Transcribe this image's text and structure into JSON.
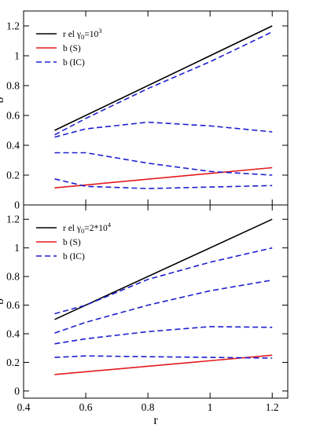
{
  "colors": {
    "black": "#000000",
    "red": "#e41a1c",
    "blue": "#1f1fd0"
  },
  "chart_data": [
    {
      "type": "line",
      "panel": "top",
      "xlim": [
        0.4,
        1.25
      ],
      "ylim": [
        0,
        1.3
      ],
      "xticks": [
        0.4,
        0.6,
        0.8,
        1,
        1.2
      ],
      "yticks": [
        0,
        0.2,
        0.4,
        0.6,
        0.8,
        1,
        1.2
      ],
      "ytick_labels": [
        "0",
        "0.2",
        "0.4",
        "0.6",
        "0.8",
        "1",
        "1.2"
      ],
      "ylabel": "b",
      "legend_position": "top-left",
      "legend": [
        {
          "label": "r el γ",
          "sub": "0",
          "tail": "=10",
          "sup": "3",
          "color": "black",
          "dash": "solid"
        },
        {
          "label": "b  (S)",
          "sub": "",
          "tail": "",
          "sup": "",
          "color": "red",
          "dash": "solid"
        },
        {
          "label": "b  (IC)",
          "sub": "",
          "tail": "",
          "sup": "",
          "color": "blue",
          "dash": "dashed"
        }
      ],
      "series": [
        {
          "name": "r el",
          "color": "black",
          "dash": "solid",
          "x": [
            0.5,
            1.2
          ],
          "y": [
            0.5,
            1.2
          ]
        },
        {
          "name": "b (S)",
          "color": "red",
          "dash": "solid",
          "x": [
            0.5,
            1.2
          ],
          "y": [
            0.115,
            0.25
          ]
        },
        {
          "color": "blue",
          "dash": "dashed",
          "x": [
            0.5,
            0.6,
            0.8,
            1.0,
            1.2
          ],
          "y": [
            0.47,
            0.58,
            0.78,
            0.96,
            1.16
          ]
        },
        {
          "color": "blue",
          "dash": "dashed",
          "x": [
            0.5,
            0.6,
            0.8,
            1.0,
            1.2
          ],
          "y": [
            0.455,
            0.51,
            0.555,
            0.53,
            0.49
          ]
        },
        {
          "color": "blue",
          "dash": "dashed",
          "x": [
            0.5,
            0.6,
            0.8,
            1.0,
            1.2
          ],
          "y": [
            0.35,
            0.35,
            0.28,
            0.225,
            0.2
          ]
        },
        {
          "color": "blue",
          "dash": "dashed",
          "x": [
            0.5,
            0.6,
            0.8,
            1.0,
            1.2
          ],
          "y": [
            0.175,
            0.125,
            0.11,
            0.12,
            0.13
          ]
        }
      ]
    },
    {
      "type": "line",
      "panel": "bottom",
      "xlim": [
        0.4,
        1.25
      ],
      "ylim": [
        -0.05,
        1.3
      ],
      "xticks": [
        0.4,
        0.6,
        0.8,
        1,
        1.2
      ],
      "xtick_labels": [
        "0.4",
        "0.6",
        "0.8",
        "1",
        "1.2"
      ],
      "yticks": [
        0,
        0.2,
        0.4,
        0.6,
        0.8,
        1,
        1.2
      ],
      "ytick_labels": [
        "0",
        "0.2",
        "0.4",
        "0.6",
        "0.8",
        "1",
        "1.2"
      ],
      "xlabel": "r",
      "ylabel": "b",
      "legend_position": "top-left",
      "legend": [
        {
          "label": "r el γ",
          "sub": "0",
          "tail": "=2*10",
          "sup": "4",
          "color": "black",
          "dash": "solid"
        },
        {
          "label": "b (S)",
          "sub": "",
          "tail": "",
          "sup": "",
          "color": "red",
          "dash": "solid"
        },
        {
          "label": "b (IC)",
          "sub": "",
          "tail": "",
          "sup": "",
          "color": "blue",
          "dash": "dashed"
        }
      ],
      "series": [
        {
          "name": "r el",
          "color": "black",
          "dash": "solid",
          "x": [
            0.5,
            1.2
          ],
          "y": [
            0.5,
            1.2
          ]
        },
        {
          "name": "b (S)",
          "color": "red",
          "dash": "solid",
          "x": [
            0.5,
            1.2
          ],
          "y": [
            0.115,
            0.25
          ]
        },
        {
          "color": "blue",
          "dash": "dashed",
          "x": [
            0.5,
            0.6,
            0.8,
            1.0,
            1.2
          ],
          "y": [
            0.54,
            0.6,
            0.78,
            0.9,
            1.0
          ]
        },
        {
          "color": "blue",
          "dash": "dashed",
          "x": [
            0.5,
            0.6,
            0.8,
            1.0,
            1.2
          ],
          "y": [
            0.405,
            0.48,
            0.6,
            0.7,
            0.775
          ]
        },
        {
          "color": "blue",
          "dash": "dashed",
          "x": [
            0.5,
            0.6,
            0.8,
            1.0,
            1.2
          ],
          "y": [
            0.33,
            0.365,
            0.415,
            0.45,
            0.445
          ]
        },
        {
          "color": "blue",
          "dash": "dashed",
          "x": [
            0.5,
            0.6,
            0.8,
            1.0,
            1.2
          ],
          "y": [
            0.235,
            0.245,
            0.24,
            0.235,
            0.23
          ]
        }
      ]
    }
  ]
}
